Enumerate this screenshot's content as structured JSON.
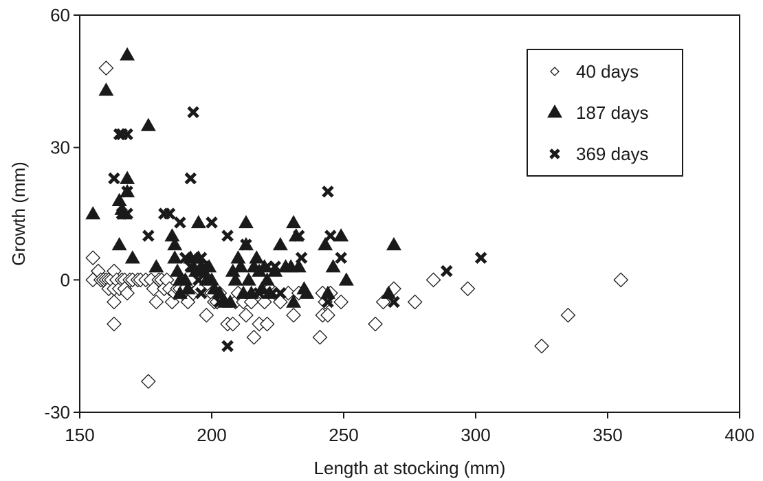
{
  "chart_data": {
    "type": "scatter",
    "title": "",
    "xlabel": "Length at stocking (mm)",
    "ylabel": "Growth (mm)",
    "xlim": [
      150,
      400
    ],
    "ylim": [
      -30,
      60
    ],
    "xticks": [
      150,
      200,
      250,
      300,
      350,
      400
    ],
    "yticks": [
      -30,
      0,
      30,
      60
    ],
    "grid": false,
    "legend_position": "top-right",
    "series": [
      {
        "name": "40 days",
        "marker": "open-diamond",
        "points": [
          [
            160,
            48
          ],
          [
            155,
            5
          ],
          [
            155,
            0
          ],
          [
            157,
            2
          ],
          [
            158,
            0
          ],
          [
            159,
            0
          ],
          [
            160,
            0
          ],
          [
            161,
            0
          ],
          [
            161,
            -2
          ],
          [
            162,
            0
          ],
          [
            163,
            2
          ],
          [
            163,
            -2
          ],
          [
            163,
            -5
          ],
          [
            163,
            -10
          ],
          [
            164,
            0
          ],
          [
            165,
            -2
          ],
          [
            166,
            0
          ],
          [
            167,
            0
          ],
          [
            167,
            -2
          ],
          [
            168,
            -3
          ],
          [
            169,
            0
          ],
          [
            170,
            0
          ],
          [
            172,
            0
          ],
          [
            173,
            0
          ],
          [
            175,
            0
          ],
          [
            176,
            -23
          ],
          [
            177,
            0
          ],
          [
            178,
            -2
          ],
          [
            179,
            -5
          ],
          [
            180,
            0
          ],
          [
            181,
            0
          ],
          [
            182,
            -2
          ],
          [
            183,
            0
          ],
          [
            184,
            -2
          ],
          [
            185,
            -5
          ],
          [
            186,
            -3
          ],
          [
            187,
            -2
          ],
          [
            188,
            -2
          ],
          [
            189,
            -3
          ],
          [
            190,
            -2
          ],
          [
            191,
            -5
          ],
          [
            193,
            -3
          ],
          [
            195,
            -2
          ],
          [
            198,
            -8
          ],
          [
            200,
            -3
          ],
          [
            201,
            -5
          ],
          [
            202,
            -5
          ],
          [
            203,
            -3
          ],
          [
            206,
            -10
          ],
          [
            208,
            -10
          ],
          [
            209,
            -5
          ],
          [
            210,
            -3
          ],
          [
            212,
            -5
          ],
          [
            213,
            -8
          ],
          [
            215,
            -5
          ],
          [
            216,
            -13
          ],
          [
            218,
            -10
          ],
          [
            219,
            -3
          ],
          [
            220,
            -5
          ],
          [
            221,
            -10
          ],
          [
            222,
            -2
          ],
          [
            224,
            -3
          ],
          [
            226,
            -5
          ],
          [
            229,
            -3
          ],
          [
            231,
            -8
          ],
          [
            233,
            -3
          ],
          [
            241,
            -13
          ],
          [
            242,
            -8
          ],
          [
            242,
            -3
          ],
          [
            243,
            -5
          ],
          [
            244,
            -8
          ],
          [
            245,
            -3
          ],
          [
            249,
            -5
          ],
          [
            262,
            -10
          ],
          [
            265,
            -5
          ],
          [
            269,
            -2
          ],
          [
            277,
            -5
          ],
          [
            284,
            0
          ],
          [
            297,
            -2
          ],
          [
            325,
            -15
          ],
          [
            335,
            -8
          ],
          [
            355,
            0
          ]
        ]
      },
      {
        "name": "187 days",
        "marker": "filled-triangle",
        "points": [
          [
            168,
            51
          ],
          [
            160,
            43
          ],
          [
            176,
            35
          ],
          [
            155,
            15
          ],
          [
            165,
            18
          ],
          [
            166,
            16
          ],
          [
            167,
            15
          ],
          [
            168,
            23
          ],
          [
            168,
            20
          ],
          [
            165,
            8
          ],
          [
            170,
            5
          ],
          [
            179,
            3
          ],
          [
            185,
            10
          ],
          [
            186,
            8
          ],
          [
            186,
            5
          ],
          [
            187,
            2
          ],
          [
            188,
            0
          ],
          [
            188,
            -3
          ],
          [
            190,
            0
          ],
          [
            191,
            -2
          ],
          [
            192,
            5
          ],
          [
            193,
            3
          ],
          [
            194,
            2
          ],
          [
            195,
            13
          ],
          [
            195,
            5
          ],
          [
            196,
            3
          ],
          [
            197,
            2
          ],
          [
            198,
            0
          ],
          [
            199,
            3
          ],
          [
            200,
            0
          ],
          [
            201,
            -2
          ],
          [
            203,
            -3
          ],
          [
            205,
            -5
          ],
          [
            207,
            -5
          ],
          [
            208,
            2
          ],
          [
            209,
            0
          ],
          [
            210,
            5
          ],
          [
            211,
            3
          ],
          [
            212,
            -3
          ],
          [
            213,
            13
          ],
          [
            213,
            8
          ],
          [
            214,
            0
          ],
          [
            215,
            -3
          ],
          [
            216,
            3
          ],
          [
            217,
            5
          ],
          [
            218,
            2
          ],
          [
            219,
            -2
          ],
          [
            220,
            3
          ],
          [
            221,
            0
          ],
          [
            222,
            -3
          ],
          [
            224,
            2
          ],
          [
            226,
            8
          ],
          [
            228,
            3
          ],
          [
            230,
            3
          ],
          [
            231,
            13
          ],
          [
            231,
            -5
          ],
          [
            232,
            10
          ],
          [
            233,
            3
          ],
          [
            235,
            -2
          ],
          [
            236,
            -3
          ],
          [
            243,
            8
          ],
          [
            244,
            -3
          ],
          [
            246,
            3
          ],
          [
            249,
            10
          ],
          [
            251,
            0
          ],
          [
            267,
            -3
          ],
          [
            269,
            8
          ]
        ]
      },
      {
        "name": "369 days",
        "marker": "cross",
        "points": [
          [
            193,
            38
          ],
          [
            165,
            33
          ],
          [
            166,
            33
          ],
          [
            168,
            33
          ],
          [
            163,
            23
          ],
          [
            168,
            20
          ],
          [
            166,
            15
          ],
          [
            168,
            15
          ],
          [
            192,
            23
          ],
          [
            182,
            15
          ],
          [
            184,
            15
          ],
          [
            188,
            13
          ],
          [
            176,
            10
          ],
          [
            190,
            5
          ],
          [
            193,
            5
          ],
          [
            196,
            5
          ],
          [
            197,
            3
          ],
          [
            192,
            3
          ],
          [
            195,
            0
          ],
          [
            196,
            -3
          ],
          [
            200,
            13
          ],
          [
            203,
            -5
          ],
          [
            206,
            10
          ],
          [
            206,
            -15
          ],
          [
            213,
            8
          ],
          [
            218,
            -3
          ],
          [
            221,
            3
          ],
          [
            223,
            -3
          ],
          [
            224,
            3
          ],
          [
            226,
            -3
          ],
          [
            233,
            10
          ],
          [
            234,
            5
          ],
          [
            244,
            20
          ],
          [
            245,
            10
          ],
          [
            244,
            -5
          ],
          [
            249,
            5
          ],
          [
            269,
            -5
          ],
          [
            289,
            2
          ],
          [
            302,
            5
          ]
        ]
      }
    ]
  }
}
